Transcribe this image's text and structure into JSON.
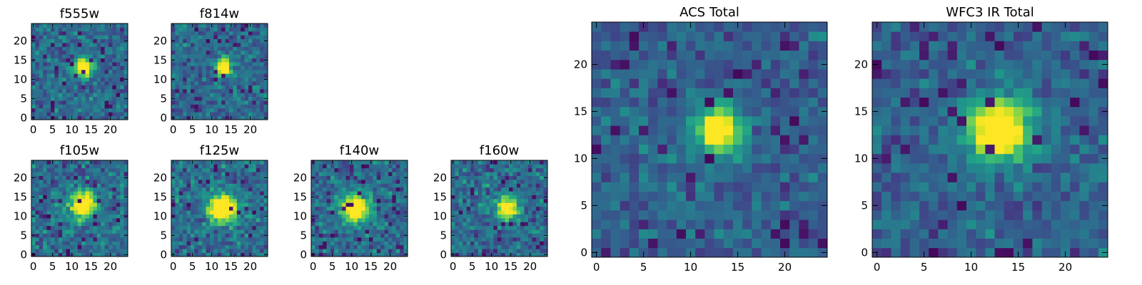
{
  "chart_data": [
    {
      "type": "heatmap",
      "title": "f555w",
      "xlim": [
        -0.5,
        24.5
      ],
      "ylim": [
        -0.5,
        24.5
      ],
      "x_ticks": [
        0,
        5,
        10,
        15,
        20
      ],
      "y_ticks": [
        0,
        5,
        10,
        15,
        20
      ],
      "x_tick_labels": [
        "0",
        "5",
        "10",
        "15",
        "20"
      ],
      "y_tick_labels": [
        "0",
        "5",
        "10",
        "15",
        "20"
      ],
      "colormap": "viridis",
      "source_center": [
        13,
        13
      ],
      "source_radius": 1.6,
      "noise_level": 0.55,
      "seed": 11
    },
    {
      "type": "heatmap",
      "title": "f814w",
      "xlim": [
        -0.5,
        24.5
      ],
      "ylim": [
        -0.5,
        24.5
      ],
      "x_ticks": [
        0,
        5,
        10,
        15,
        20
      ],
      "y_ticks": [
        0,
        5,
        10,
        15,
        20
      ],
      "x_tick_labels": [
        "0",
        "5",
        "10",
        "15",
        "20"
      ],
      "y_tick_labels": [
        "0",
        "5",
        "10",
        "15",
        "20"
      ],
      "colormap": "viridis",
      "source_center": [
        13,
        13
      ],
      "source_radius": 1.5,
      "noise_level": 0.55,
      "seed": 23
    },
    {
      "type": "heatmap",
      "title": "f105w",
      "xlim": [
        -0.5,
        24.5
      ],
      "ylim": [
        -0.5,
        24.5
      ],
      "x_ticks": [
        0,
        5,
        10,
        15,
        20
      ],
      "y_ticks": [
        0,
        5,
        10,
        15,
        20
      ],
      "x_tick_labels": [
        "0",
        "5",
        "10",
        "15",
        "20"
      ],
      "y_tick_labels": [
        "0",
        "5",
        "10",
        "15",
        "20"
      ],
      "colormap": "viridis",
      "source_center": [
        13,
        13
      ],
      "source_radius": 2.4,
      "noise_level": 0.6,
      "seed": 37
    },
    {
      "type": "heatmap",
      "title": "f125w",
      "xlim": [
        -0.5,
        24.5
      ],
      "ylim": [
        -0.5,
        24.5
      ],
      "x_ticks": [
        0,
        5,
        10,
        15,
        20
      ],
      "y_ticks": [
        0,
        5,
        10,
        15,
        20
      ],
      "x_tick_labels": [
        "0",
        "5",
        "10",
        "15",
        "20"
      ],
      "y_tick_labels": [
        "0",
        "5",
        "10",
        "15",
        "20"
      ],
      "colormap": "viridis",
      "source_center": [
        13,
        12
      ],
      "source_radius": 2.6,
      "noise_level": 0.6,
      "seed": 41
    },
    {
      "type": "heatmap",
      "title": "f140w",
      "xlim": [
        -0.5,
        24.5
      ],
      "ylim": [
        -0.5,
        24.5
      ],
      "x_ticks": [
        0,
        5,
        10,
        15,
        20
      ],
      "y_ticks": [
        0,
        5,
        10,
        15,
        20
      ],
      "x_tick_labels": [
        "0",
        "5",
        "10",
        "15",
        "20"
      ],
      "y_tick_labels": [
        "0",
        "5",
        "10",
        "15",
        "20"
      ],
      "colormap": "viridis",
      "source_center": [
        11,
        12
      ],
      "source_radius": 2.4,
      "noise_level": 0.6,
      "seed": 53
    },
    {
      "type": "heatmap",
      "title": "f160w",
      "xlim": [
        -0.5,
        24.5
      ],
      "ylim": [
        -0.5,
        24.5
      ],
      "x_ticks": [
        0,
        5,
        10,
        15,
        20
      ],
      "y_ticks": [
        0,
        5,
        10,
        15,
        20
      ],
      "x_tick_labels": [
        "0",
        "5",
        "10",
        "15",
        "20"
      ],
      "y_tick_labels": [
        "0",
        "5",
        "10",
        "15",
        "20"
      ],
      "colormap": "viridis",
      "source_center": [
        14,
        12
      ],
      "source_radius": 1.9,
      "noise_level": 0.6,
      "seed": 67
    },
    {
      "type": "heatmap",
      "title": "ACS Total",
      "xlim": [
        -0.5,
        24.5
      ],
      "ylim": [
        -0.5,
        24.5
      ],
      "x_ticks": [
        0,
        5,
        10,
        15,
        20
      ],
      "y_ticks": [
        0,
        5,
        10,
        15,
        20
      ],
      "x_tick_labels": [
        "0",
        "5",
        "10",
        "15",
        "20"
      ],
      "y_tick_labels": [
        "0",
        "5",
        "10",
        "15",
        "20"
      ],
      "colormap": "viridis",
      "source_center": [
        13,
        13
      ],
      "source_radius": 1.7,
      "noise_level": 0.45,
      "seed": 79
    },
    {
      "type": "heatmap",
      "title": "WFC3 IR Total",
      "xlim": [
        -0.5,
        24.5
      ],
      "ylim": [
        -0.5,
        24.5
      ],
      "x_ticks": [
        0,
        5,
        10,
        15,
        20
      ],
      "y_ticks": [
        0,
        5,
        10,
        15,
        20
      ],
      "x_tick_labels": [
        "0",
        "5",
        "10",
        "15",
        "20"
      ],
      "y_tick_labels": [
        "0",
        "5",
        "10",
        "15",
        "20"
      ],
      "colormap": "viridis",
      "source_center": [
        13,
        13
      ],
      "source_radius": 2.3,
      "noise_level": 0.45,
      "seed": 97
    }
  ]
}
